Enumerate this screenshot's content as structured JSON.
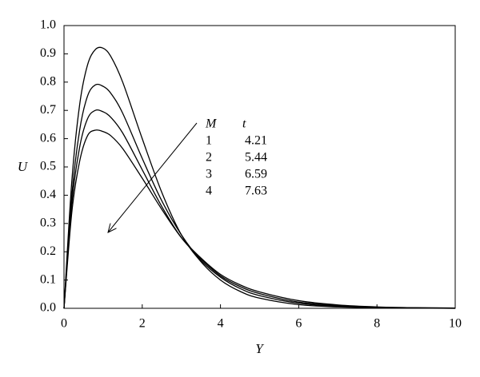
{
  "chart_data": {
    "type": "line",
    "x_label": "Y",
    "y_label": "U",
    "x": [
      0,
      0.2,
      0.4,
      0.6,
      0.8,
      1,
      1.2,
      1.5,
      2,
      2.5,
      3,
      3.5,
      4,
      4.5,
      5,
      6,
      7,
      8,
      9,
      10
    ],
    "series": [
      {
        "color": "#000000",
        "values": [
          0,
          0.45,
          0.72,
          0.86,
          0.915,
          0.92,
          0.89,
          0.8,
          0.6,
          0.41,
          0.26,
          0.165,
          0.1,
          0.06,
          0.036,
          0.013,
          0.005,
          0.002,
          0.001,
          0
        ]
      },
      {
        "color": "#000000",
        "values": [
          0,
          0.4,
          0.63,
          0.75,
          0.79,
          0.785,
          0.76,
          0.69,
          0.53,
          0.38,
          0.26,
          0.17,
          0.11,
          0.07,
          0.045,
          0.018,
          0.007,
          0.003,
          0.001,
          0
        ]
      },
      {
        "color": "#000000",
        "values": [
          0,
          0.37,
          0.57,
          0.67,
          0.7,
          0.695,
          0.675,
          0.62,
          0.49,
          0.36,
          0.25,
          0.175,
          0.115,
          0.077,
          0.052,
          0.022,
          0.01,
          0.004,
          0.002,
          0.001
        ]
      },
      {
        "color": "#000000",
        "values": [
          0,
          0.34,
          0.52,
          0.61,
          0.63,
          0.625,
          0.61,
          0.565,
          0.46,
          0.35,
          0.25,
          0.178,
          0.12,
          0.083,
          0.058,
          0.027,
          0.012,
          0.005,
          0.002,
          0.001
        ]
      }
    ],
    "xlim": [
      0,
      10
    ],
    "xticks": [
      0,
      2,
      4,
      6,
      8,
      10
    ],
    "ylim": [
      0,
      1
    ],
    "yticks": [
      {
        "value": 0,
        "label": "0.0"
      },
      0.1,
      0.2,
      0.3,
      0.4,
      0.5,
      0.6,
      0.7,
      0.8,
      0.9,
      {
        "value": 1,
        "label": "1.0"
      }
    ],
    "annotation": {
      "header": [
        "M",
        "t"
      ],
      "rows": [
        [
          1,
          4.21
        ],
        [
          2,
          5.44
        ],
        [
          3,
          6.59
        ],
        [
          4,
          7.63
        ]
      ]
    }
  }
}
